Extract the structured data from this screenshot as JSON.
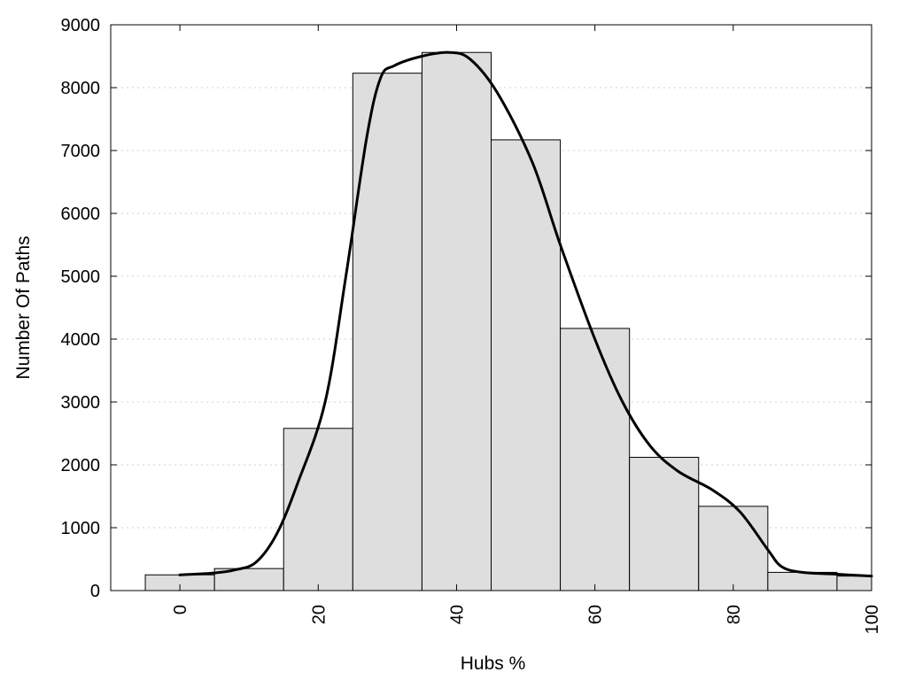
{
  "chart_data": {
    "type": "bar",
    "title": "",
    "xlabel": "Hubs %",
    "ylabel": "Number Of Paths",
    "xlim": [
      -10,
      100
    ],
    "ylim": [
      0,
      9000
    ],
    "bin_width": 10,
    "x_ticks": [
      "0",
      "20",
      "40",
      "60",
      "80",
      "100"
    ],
    "y_ticks": [
      "0",
      "1000",
      "2000",
      "3000",
      "4000",
      "5000",
      "6000",
      "7000",
      "8000",
      "9000"
    ],
    "grid": "horizontal dotted",
    "colors": {
      "bar_fill": "#dedede",
      "bar_edge": "#000000",
      "curve": "#000000",
      "grid": "#cfcfcf"
    },
    "bars": [
      {
        "center": 0,
        "value": 250
      },
      {
        "center": 10,
        "value": 350
      },
      {
        "center": 20,
        "value": 2580
      },
      {
        "center": 30,
        "value": 8230
      },
      {
        "center": 40,
        "value": 8560
      },
      {
        "center": 50,
        "value": 7170
      },
      {
        "center": 60,
        "value": 4170
      },
      {
        "center": 70,
        "value": 2120
      },
      {
        "center": 80,
        "value": 1340
      },
      {
        "center": 90,
        "value": 290
      },
      {
        "center": 100,
        "value": 230
      }
    ],
    "density_curve": {
      "x": [
        0,
        5,
        8,
        11,
        14,
        17,
        21,
        24,
        27,
        29,
        31,
        35,
        39,
        42,
        46,
        51,
        55,
        60,
        64,
        68,
        72,
        77,
        81,
        85,
        87,
        90,
        95,
        100
      ],
      "y": [
        250,
        280,
        330,
        450,
        900,
        1700,
        3000,
        5000,
        7200,
        8150,
        8350,
        8500,
        8560,
        8450,
        7900,
        6800,
        5500,
        4000,
        3000,
        2300,
        1900,
        1600,
        1250,
        650,
        380,
        290,
        260,
        230
      ]
    }
  }
}
